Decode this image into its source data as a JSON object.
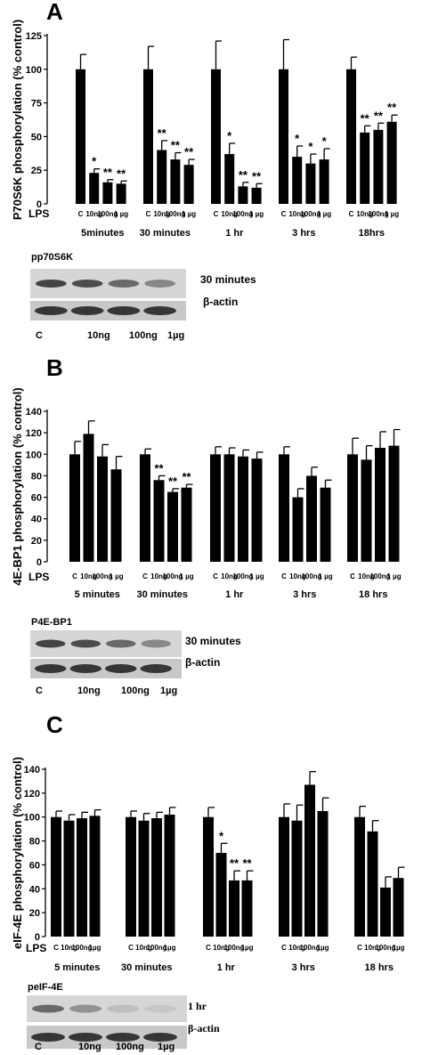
{
  "panels": [
    {
      "letter": "A",
      "ylabel": "P70S6K phosphorylation (% control)",
      "lps_label": "LPS",
      "ticks": [
        "C",
        "10ng",
        "100ng",
        "1 µg"
      ],
      "blot": {
        "title": "pp70S6K",
        "band1_label": "30 minutes",
        "band2_label": "β-actin",
        "lanes": [
          "C",
          "10ng",
          "100ng",
          "1µg"
        ]
      }
    },
    {
      "letter": "B",
      "ylabel": "4E-BP1 phosphorylation (% control)",
      "lps_label": "LPS",
      "ticks": [
        "C",
        "10ng",
        "100ng",
        "1 µg"
      ],
      "blot": {
        "title": "P4E-BP1",
        "band1_label": "30 minutes",
        "band2_label": "β-actin",
        "lanes": [
          "C",
          "10ng",
          "100ng",
          "1µg"
        ]
      }
    },
    {
      "letter": "C",
      "ylabel": "eIF-4E phosphorylation (% control)",
      "lps_label": "LPS",
      "ticks": [
        "C",
        "10ng",
        "100ng",
        "1µg"
      ],
      "blot": {
        "title": "peIF-4E",
        "band1_label": "1 hr",
        "band2_label": "β-actin",
        "lanes": [
          "C",
          "10ng",
          "100ng",
          "1µg"
        ]
      }
    }
  ],
  "chart_data": [
    {
      "type": "bar",
      "ylim": [
        0,
        125
      ],
      "yticks": [
        0,
        25,
        50,
        75,
        100,
        125
      ],
      "groups": [
        "5minutes",
        "30 minutes",
        "1 hr",
        "3 hrs",
        "18hrs"
      ],
      "values": [
        [
          100,
          23,
          16,
          15
        ],
        [
          100,
          40,
          33,
          29
        ],
        [
          100,
          37,
          13,
          12
        ],
        [
          100,
          35,
          30,
          33
        ],
        [
          100,
          53,
          55,
          61
        ]
      ],
      "errors": [
        [
          11,
          3,
          2,
          2
        ],
        [
          17,
          7,
          5,
          4
        ],
        [
          21,
          8,
          3,
          3
        ],
        [
          22,
          8,
          7,
          8
        ],
        [
          9,
          5,
          5,
          5
        ]
      ],
      "marks": [
        [
          "",
          "*",
          "**",
          "**"
        ],
        [
          "",
          "**",
          "**",
          "**"
        ],
        [
          "",
          "*",
          "**",
          "**"
        ],
        [
          "",
          "*",
          "*",
          "*"
        ],
        [
          "",
          "**",
          "**",
          "**"
        ]
      ]
    },
    {
      "type": "bar",
      "ylim": [
        0,
        140
      ],
      "yticks": [
        0,
        20,
        40,
        60,
        80,
        100,
        120,
        140
      ],
      "groups": [
        "5 minutes",
        "30 minutes",
        "1 hr",
        "3 hrs",
        "18 hrs"
      ],
      "values": [
        [
          100,
          119,
          98,
          86
        ],
        [
          100,
          76,
          65,
          69
        ],
        [
          100,
          100,
          98,
          96
        ],
        [
          100,
          60,
          80,
          69
        ],
        [
          100,
          95,
          106,
          108
        ]
      ],
      "errors": [
        [
          12,
          12,
          11,
          12
        ],
        [
          5,
          4,
          3,
          3
        ],
        [
          7,
          6,
          6,
          6
        ],
        [
          7,
          8,
          8,
          7
        ],
        [
          15,
          13,
          15,
          15
        ]
      ],
      "marks": [
        [
          "",
          "",
          "",
          ""
        ],
        [
          "",
          "**",
          "**",
          "**"
        ],
        [
          "",
          "",
          "",
          ""
        ],
        [
          "",
          "",
          "",
          ""
        ],
        [
          "",
          "",
          "",
          ""
        ]
      ]
    },
    {
      "type": "bar",
      "ylim": [
        0,
        140
      ],
      "yticks": [
        0,
        20,
        40,
        60,
        80,
        100,
        120,
        140
      ],
      "groups": [
        "5 minutes",
        "30 minutes",
        "1 hr",
        "3 hrs",
        "18 hrs"
      ],
      "values": [
        [
          100,
          97,
          99,
          101
        ],
        [
          100,
          97,
          99,
          102
        ],
        [
          100,
          70,
          47,
          47
        ],
        [
          100,
          97,
          127,
          105
        ],
        [
          100,
          88,
          41,
          49
        ]
      ],
      "errors": [
        [
          5,
          5,
          5,
          5
        ],
        [
          5,
          6,
          5,
          6
        ],
        [
          8,
          8,
          8,
          8
        ],
        [
          11,
          13,
          11,
          11
        ],
        [
          9,
          9,
          9,
          9
        ]
      ],
      "marks": [
        [
          "",
          "",
          "",
          ""
        ],
        [
          "",
          "",
          "",
          ""
        ],
        [
          "",
          "*",
          "**",
          "**"
        ],
        [
          "",
          "",
          "",
          ""
        ],
        [
          "",
          "",
          "",
          ""
        ]
      ]
    }
  ]
}
